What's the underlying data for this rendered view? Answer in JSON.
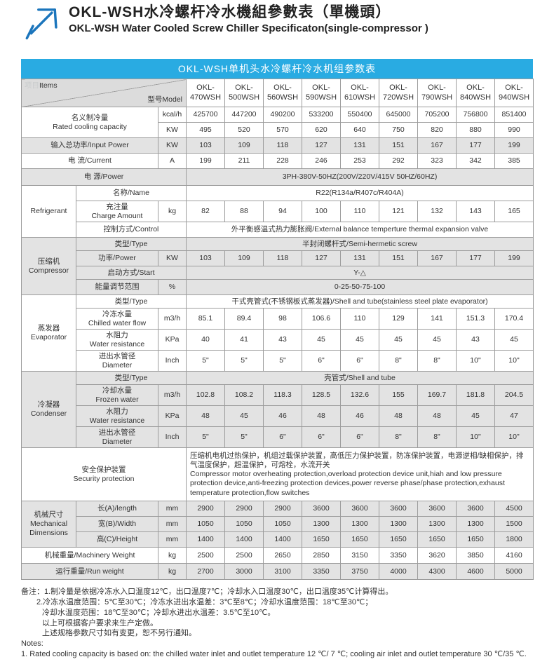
{
  "page": {
    "title_zh": "OKL-WSH水冷螺杆冷水機組參數表（單機頭）",
    "title_en": "OKL-WSH Water Cooled Screw Chiller Specificaton(single-compressor )",
    "banner": "OKL-WSH单机头水冷螺杆冷水机组参数表"
  },
  "colors": {
    "banner_blue": "#29abe2",
    "arrow_blue": "#1b75bc",
    "row_grey": "#e3e3e3"
  },
  "header": {
    "items_zh": "项目",
    "items_en": "Items",
    "model_label": "型号Model",
    "models": [
      "OKL-\n470WSH",
      "OKL-\n500WSH",
      "OKL-\n560WSH",
      "OKL-\n590WSH",
      "OKL-\n610WSH",
      "OKL-\n720WSH",
      "OKL-\n790WSH",
      "OKL-\n840WSH",
      "OKL-\n940WSH"
    ]
  },
  "rows": {
    "rated": {
      "label": "名义制冷量\nRated cooling capacity",
      "unit1": "kcal/h",
      "values1": [
        425700,
        447200,
        490200,
        533200,
        550400,
        645000,
        705200,
        756800,
        851400
      ],
      "unit2": "KW",
      "values2": [
        495,
        520,
        570,
        620,
        640,
        750,
        820,
        880,
        990
      ]
    },
    "input_power": {
      "label": "输入总功率/Input Power",
      "unit": "KW",
      "values": [
        103,
        109,
        118,
        127,
        131,
        151,
        167,
        177,
        199
      ]
    },
    "current": {
      "label": "电  流/Current",
      "unit": "A",
      "values": [
        199,
        211,
        228,
        246,
        253,
        292,
        323,
        342,
        385
      ]
    },
    "power_supply": {
      "label": "电    源/Power",
      "value": "3PH-380V-50HZ(200V/220V/415V  50HZ/60HZ)"
    },
    "refrigerant": {
      "section": "Refrigerant",
      "name": {
        "label": "名称/Name",
        "value": "R22(R134a/R407c/R404A)"
      },
      "charge": {
        "label": "充注量\nCharge Amount",
        "unit": "kg",
        "values": [
          82,
          88,
          94,
          100,
          110,
          121,
          132,
          143,
          165
        ]
      },
      "control": {
        "label": "控制方式/Control",
        "value": "外平衡感温式热力膨胀阀/External balance temperture thermal expansion valve"
      }
    },
    "compressor": {
      "section": "压缩机\nCompressor",
      "type": {
        "label": "类型/Type",
        "value": "半封闭螺杆式/Semi-hermetic screw"
      },
      "power": {
        "label": "功率/Power",
        "unit": "KW",
        "values": [
          103,
          109,
          118,
          127,
          131,
          151,
          167,
          177,
          199
        ]
      },
      "start": {
        "label": "启动方式/Start",
        "value": "Y-△"
      },
      "energy": {
        "label": "能量调节范围",
        "unit": "%",
        "value": "0-25-50-75-100"
      }
    },
    "evaporator": {
      "section": "蒸发器\nEvaporator",
      "type": {
        "label": "类型/Type",
        "value": "干式壳管式(不锈钢板式蒸发器)/Shell and tube(stainless steel plate evaporator)"
      },
      "flow": {
        "label": "冷冻水量\nChilled water flow",
        "unit": "m3/h",
        "values": [
          85.1,
          89.4,
          98,
          106.6,
          110,
          129,
          141,
          151.3,
          170.4
        ]
      },
      "resistance": {
        "label": "水阻力\nWater resistance",
        "unit": "KPa",
        "values": [
          40,
          41,
          43,
          45,
          45,
          45,
          45,
          43,
          45
        ]
      },
      "diameter": {
        "label": "进出水管径\nDiameter",
        "unit": "Inch",
        "values": [
          "5\"",
          "5\"",
          "5\"",
          "6\"",
          "6\"",
          "8\"",
          "8\"",
          "10\"",
          "10\""
        ]
      }
    },
    "condenser": {
      "section": "冷凝器\nCondenser",
      "type": {
        "label": "类型/Type",
        "value": "壳管式/Shell and tube"
      },
      "flow": {
        "label": "冷却水量\nFrozen water",
        "unit": "m3/h",
        "values": [
          102.8,
          108.2,
          118.3,
          128.5,
          132.6,
          155,
          169.7,
          181.8,
          204.5
        ]
      },
      "resistance": {
        "label": "水阻力\nWater resistance",
        "unit": "KPa",
        "values": [
          48,
          45,
          46,
          48,
          46,
          48,
          48,
          45,
          47
        ]
      },
      "diameter": {
        "label": "进出水管径\nDiameter",
        "unit": "Inch",
        "values": [
          "5\"",
          "5\"",
          "6\"",
          "6\"",
          "6\"",
          "8\"",
          "8\"",
          "10\"",
          "10\""
        ]
      }
    },
    "security": {
      "label": "安全保护装置\nSecurity protection",
      "value": "压缩机电机过热保护，机组过载保护装置，高低压力保护装置，防冻保护装置，电源逆相/缺相保护，排气温度保护，超温保护，可熔栓，水流开关\nCompressor motor overheating protection,overload protection device unit,hiah and low pressure protection device,anti-freezing protection devices,power reverse phase/phase protection,exhaust temperature protection,flow switches"
    },
    "dimensions": {
      "section": "机械尺寸\nMechanical\nDimensions",
      "length": {
        "label": "长(A)/length",
        "unit": "mm",
        "values": [
          2900,
          2900,
          2900,
          3600,
          3600,
          3600,
          3600,
          3600,
          4500
        ]
      },
      "width": {
        "label": "宽(B)/Width",
        "unit": "mm",
        "values": [
          1050,
          1050,
          1050,
          1300,
          1300,
          1300,
          1300,
          1300,
          1500
        ]
      },
      "height": {
        "label": "高(C)/Height",
        "unit": "mm",
        "values": [
          1400,
          1400,
          1400,
          1650,
          1650,
          1650,
          1650,
          1650,
          1800
        ]
      }
    },
    "machinery_weight": {
      "label": "机械重量/Machinery Weight",
      "unit": "kg",
      "values": [
        2500,
        2500,
        2650,
        2850,
        3150,
        3350,
        3620,
        3850,
        4160
      ]
    },
    "run_weight": {
      "label": "运行重量/Run weight",
      "unit": "kg",
      "values": [
        2700,
        3000,
        3100,
        3350,
        3750,
        4000,
        4300,
        4600,
        5000
      ]
    }
  },
  "notes": {
    "zh_lines": [
      "备注：1.制冷量是依据冷冻水入口温度12℃，出口温度7℃；冷却水入口温度30℃，出口温度35℃计算得出。",
      "2.冷冻水温度范围：5℃至30℃；冷冻水进出水温差：3℃至8℃；冷却水温度范围：18℃至30℃；",
      "冷却水温度范围：18℃至30℃；冷却水进出水温差：3.5℃至10℃。",
      "以上可根据客户要求来生产定做。",
      "上述规格参数尺寸如有变更，恕不另行通知。"
    ],
    "en_header": "Notes:",
    "en_line1": "1. Rated cooling capacity is based on: the chilled water inlet and outlet temperature 12 ℃/ 7 ℃; cooling air inlet and outlet temperature 30 ℃/35 ℃."
  }
}
